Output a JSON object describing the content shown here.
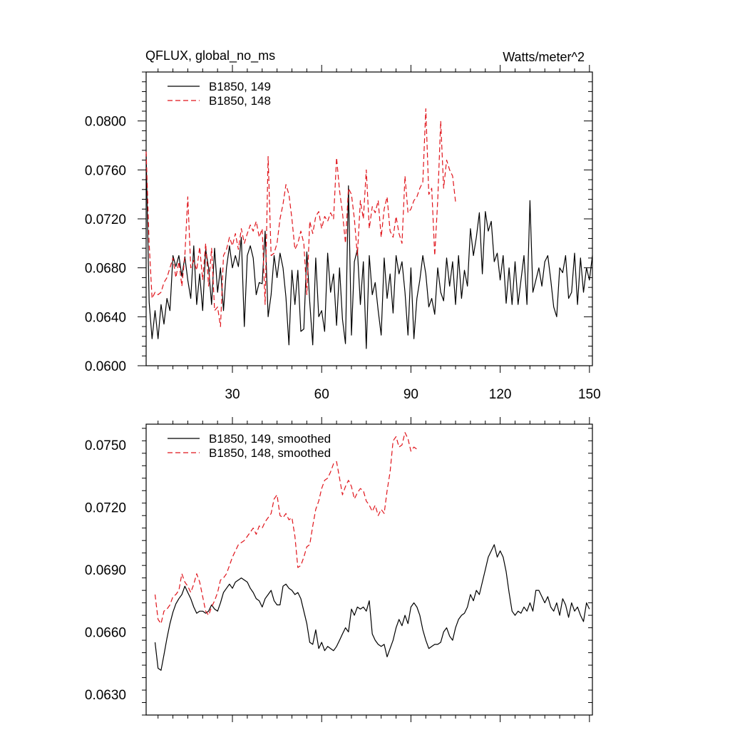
{
  "chart_data": [
    {
      "type": "line",
      "title": "QFLUX, global_no_ms",
      "units": "Watts/meter^2",
      "xlim": [
        1,
        151
      ],
      "ylim": [
        0.06,
        0.084
      ],
      "xticks": [
        30,
        60,
        90,
        120,
        150
      ],
      "xtick_labels": [
        "30",
        "60",
        "90",
        "120",
        "150"
      ],
      "yticks": [
        0.06,
        0.064,
        0.068,
        0.072,
        0.076,
        0.08
      ],
      "ytick_labels": [
        "0.0600",
        "0.0640",
        "0.0680",
        "0.0720",
        "0.0760",
        "0.0800"
      ],
      "legend_position": "top-left",
      "series": [
        {
          "name": "B1850, 149",
          "color": "#000000",
          "dash": "solid",
          "x_start": 1,
          "values": [
            0.0773,
            0.0652,
            0.0622,
            0.0645,
            0.0622,
            0.065,
            0.0634,
            0.0655,
            0.0645,
            0.069,
            0.0681,
            0.069,
            0.0673,
            0.0689,
            0.067,
            0.0655,
            0.0698,
            0.065,
            0.0675,
            0.0645,
            0.0695,
            0.068,
            0.065,
            0.0696,
            0.066,
            0.068,
            0.0645,
            0.068,
            0.0698,
            0.068,
            0.069,
            0.0681,
            0.0705,
            0.0632,
            0.069,
            0.0698,
            0.0688,
            0.0658,
            0.0668,
            0.0667,
            0.071,
            0.064,
            0.0658,
            0.069,
            0.0672,
            0.0692,
            0.068,
            0.0656,
            0.0617,
            0.0678,
            0.065,
            0.0678,
            0.0628,
            0.063,
            0.0693,
            0.0652,
            0.0617,
            0.0688,
            0.064,
            0.0645,
            0.0628,
            0.0692,
            0.066,
            0.0675,
            0.0633,
            0.068,
            0.0638,
            0.0618,
            0.0747,
            0.0625,
            0.0685,
            0.0695,
            0.065,
            0.0685,
            0.0614,
            0.069,
            0.0658,
            0.0668,
            0.0645,
            0.0625,
            0.0688,
            0.0655,
            0.0675,
            0.0643,
            0.069,
            0.0675,
            0.0685,
            0.066,
            0.0625,
            0.068,
            0.0622,
            0.0655,
            0.067,
            0.069,
            0.0675,
            0.0648,
            0.0655,
            0.0642,
            0.068,
            0.066,
            0.0653,
            0.0688,
            0.0665,
            0.0685,
            0.065,
            0.069,
            0.0655,
            0.0678,
            0.0665,
            0.0712,
            0.069,
            0.0705,
            0.0725,
            0.0675,
            0.0726,
            0.071,
            0.0718,
            0.0685,
            0.0692,
            0.067,
            0.069,
            0.0651,
            0.068,
            0.065,
            0.0685,
            0.065,
            0.067,
            0.069,
            0.065,
            0.0735,
            0.066,
            0.067,
            0.068,
            0.0665,
            0.0685,
            0.069,
            0.067,
            0.0648,
            0.064,
            0.068,
            0.0676,
            0.069,
            0.0655,
            0.066,
            0.0692,
            0.065,
            0.0688,
            0.066,
            0.068,
            0.067,
            0.069
          ]
        },
        {
          "name": "B1850, 148",
          "color": "#e0141b",
          "dash": "dashed",
          "x_start": 1,
          "values": [
            0.0775,
            0.07,
            0.0655,
            0.066,
            0.0658,
            0.066,
            0.0668,
            0.0672,
            0.068,
            0.0688,
            0.0672,
            0.0685,
            0.0665,
            0.069,
            0.0738,
            0.068,
            0.0686,
            0.0678,
            0.0697,
            0.067,
            0.07,
            0.0665,
            0.0696,
            0.0645,
            0.0648,
            0.0632,
            0.069,
            0.0695,
            0.0705,
            0.0698,
            0.0708,
            0.0695,
            0.0712,
            0.07,
            0.0708,
            0.0715,
            0.071,
            0.0718,
            0.0705,
            0.0712,
            0.065,
            0.0771,
            0.069,
            0.0692,
            0.07,
            0.072,
            0.0732,
            0.0748,
            0.074,
            0.072,
            0.0695,
            0.07,
            0.071,
            0.07,
            0.0658,
            0.0718,
            0.0708,
            0.0722,
            0.0726,
            0.0712,
            0.0722,
            0.0718,
            0.0725,
            0.072,
            0.077,
            0.0743,
            0.0725,
            0.07,
            0.0745,
            0.074,
            0.072,
            0.069,
            0.0735,
            0.072,
            0.076,
            0.0712,
            0.073,
            0.0725,
            0.0735,
            0.0705,
            0.0728,
            0.0738,
            0.071,
            0.0705,
            0.0722,
            0.0708,
            0.07,
            0.0755,
            0.0725,
            0.0728,
            0.0735,
            0.0738,
            0.0745,
            0.075,
            0.081,
            0.074,
            0.0745,
            0.069,
            0.0735,
            0.08,
            0.0745,
            0.0768,
            0.076,
            0.0755,
            0.0734
          ]
        }
      ]
    },
    {
      "type": "line",
      "xlim": [
        1,
        151
      ],
      "ylim": [
        0.062,
        0.076
      ],
      "xticks": [
        30,
        60,
        90,
        120,
        150
      ],
      "yticks": [
        0.063,
        0.066,
        0.069,
        0.072,
        0.075
      ],
      "ytick_labels": [
        "0.0630",
        "0.0660",
        "0.0690",
        "0.0720",
        "0.0750"
      ],
      "legend_position": "top-left",
      "series": [
        {
          "name": "B1850, 149, smoothed",
          "color": "#000000",
          "dash": "solid",
          "x_start": 4,
          "values": [
            0.0655,
            0.06425,
            0.06415,
            0.0649,
            0.0657,
            0.0664,
            0.06695,
            0.06735,
            0.0676,
            0.0678,
            0.0682,
            0.0679,
            0.0676,
            0.0672,
            0.0669,
            0.067,
            0.067,
            0.0669,
            0.067,
            0.0673,
            0.0671,
            0.067,
            0.0674,
            0.0679,
            0.0681,
            0.0683,
            0.0681,
            0.0684,
            0.0685,
            0.0686,
            0.0685,
            0.0684,
            0.0681,
            0.0679,
            0.0676,
            0.0675,
            0.0672,
            0.0676,
            0.0678,
            0.068,
            0.0675,
            0.0673,
            0.0673,
            0.0682,
            0.0683,
            0.0681,
            0.068,
            0.0678,
            0.0679,
            0.0676,
            0.067,
            0.0664,
            0.0655,
            0.0654,
            0.0661,
            0.0652,
            0.0655,
            0.0651,
            0.0653,
            0.0652,
            0.0651,
            0.0653,
            0.0656,
            0.0659,
            0.0662,
            0.066,
            0.0671,
            0.0668,
            0.0672,
            0.0671,
            0.0672,
            0.067,
            0.0675,
            0.0659,
            0.0656,
            0.0654,
            0.0653,
            0.0654,
            0.0648,
            0.0652,
            0.0656,
            0.0662,
            0.0666,
            0.0663,
            0.0668,
            0.0664,
            0.0672,
            0.0674,
            0.0672,
            0.0668,
            0.0661,
            0.0656,
            0.0652,
            0.0653,
            0.0654,
            0.0654,
            0.0655,
            0.066,
            0.0662,
            0.0658,
            0.0656,
            0.0662,
            0.0666,
            0.0668,
            0.0669,
            0.0672,
            0.0678,
            0.0675,
            0.068,
            0.0678,
            0.0684,
            0.069,
            0.0696,
            0.0699,
            0.0702,
            0.0696,
            0.0699,
            0.0696,
            0.0689,
            0.0679,
            0.067,
            0.0668,
            0.067,
            0.0669,
            0.0672,
            0.067,
            0.0674,
            0.067,
            0.068,
            0.068,
            0.0677,
            0.0674,
            0.0677,
            0.0672,
            0.067,
            0.0674,
            0.0668,
            0.0676,
            0.0673,
            0.0667,
            0.0674,
            0.067,
            0.0672,
            0.0668,
            0.0665,
            0.0674,
            0.0671
          ]
        },
        {
          "name": "B1850, 148, smoothed",
          "color": "#e0141b",
          "dash": "dashed",
          "x_start": 4,
          "values": [
            0.0678,
            0.0666,
            0.0664,
            0.067,
            0.0671,
            0.0673,
            0.0677,
            0.0678,
            0.068,
            0.0688,
            0.0684,
            0.0682,
            0.0679,
            0.0683,
            0.0688,
            0.0684,
            0.0677,
            0.067,
            0.0668,
            0.0672,
            0.0675,
            0.0679,
            0.0685,
            0.0686,
            0.0688,
            0.0692,
            0.0696,
            0.0699,
            0.0702,
            0.0703,
            0.0704,
            0.0706,
            0.0708,
            0.071,
            0.0707,
            0.0711,
            0.071,
            0.0713,
            0.0715,
            0.0717,
            0.0724,
            0.0726,
            0.0716,
            0.0715,
            0.0717,
            0.0714,
            0.0715,
            0.0706,
            0.0691,
            0.0692,
            0.0696,
            0.0701,
            0.0702,
            0.0711,
            0.0719,
            0.0723,
            0.0729,
            0.0733,
            0.0734,
            0.0737,
            0.0741,
            0.0742,
            0.0734,
            0.0726,
            0.073,
            0.0733,
            0.073,
            0.0724,
            0.0727,
            0.0729,
            0.0728,
            0.0723,
            0.0721,
            0.0718,
            0.0721,
            0.0716,
            0.0719,
            0.0717,
            0.0728,
            0.0737,
            0.0752,
            0.0754,
            0.0749,
            0.075,
            0.0756,
            0.0753,
            0.0747,
            0.0749,
            0.0748
          ]
        }
      ]
    }
  ]
}
